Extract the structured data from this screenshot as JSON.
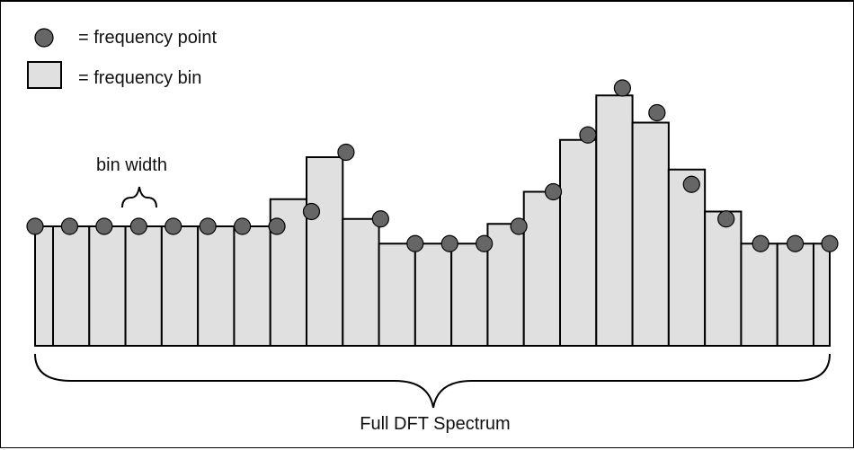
{
  "legend": {
    "point_label": "= frequency point",
    "bin_label": "= frequency bin"
  },
  "annotations": {
    "bin_width": "bin width",
    "full_spectrum": "Full DFT Spectrum"
  },
  "colors": {
    "bin_fill": "#e0e0e0",
    "point_fill": "#666666",
    "stroke": "#000000"
  },
  "chart_data": {
    "type": "bar",
    "description_free": true,
    "bin_values": [
      1,
      1,
      1,
      1,
      1,
      1,
      1,
      2.1,
      3.8,
      1.3,
      0.3,
      0.3,
      0.3,
      1.1,
      2.4,
      4.5,
      6.3,
      5.2,
      3.3,
      1.6,
      0.3,
      0.3,
      0.3
    ],
    "point_values": [
      1,
      1,
      1,
      1,
      1,
      1,
      1,
      1,
      1.6,
      4.0,
      1.3,
      0.3,
      0.3,
      0.3,
      1.0,
      2.4,
      4.7,
      6.6,
      5.6,
      2.7,
      1.3,
      0.3,
      0.3,
      0.3
    ]
  }
}
